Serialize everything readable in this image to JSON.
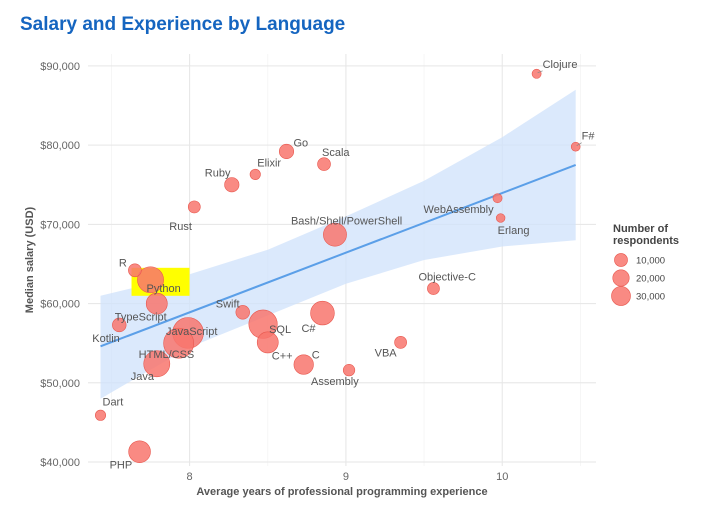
{
  "chart_data": {
    "type": "scatter",
    "title": "Salary and Experience by Language",
    "xlabel": "Average years of professional programming experience",
    "ylabel": "Median salary (USD)",
    "xlim": [
      7.35,
      10.6
    ],
    "ylim": [
      39500,
      91500
    ],
    "x_ticks": [
      8,
      9,
      10
    ],
    "y_ticks": [
      {
        "value": 40000,
        "label": "$40,000"
      },
      {
        "value": 50000,
        "label": "$50,000"
      },
      {
        "value": 60000,
        "label": "$60,000"
      },
      {
        "value": 70000,
        "label": "$70,000"
      },
      {
        "value": 80000,
        "label": "$80,000"
      },
      {
        "value": 90000,
        "label": "$90,000"
      }
    ],
    "grid": true,
    "point_color": "#f8766d",
    "fit_line_color": "#5b9fe8",
    "confidence_band_color": "#cfe2fb",
    "highlight_color": "#ffff00",
    "points": [
      {
        "name": "Clojure",
        "x": 10.22,
        "y": 89000,
        "size": 700
      },
      {
        "name": "F#",
        "x": 10.47,
        "y": 79800,
        "size": 600
      },
      {
        "name": "Go",
        "x": 8.62,
        "y": 79200,
        "size": 6000
      },
      {
        "name": "Scala",
        "x": 8.86,
        "y": 77600,
        "size": 4000
      },
      {
        "name": "Elixir",
        "x": 8.42,
        "y": 76300,
        "size": 1500
      },
      {
        "name": "Ruby",
        "x": 8.27,
        "y": 75000,
        "size": 6000
      },
      {
        "name": "Rust",
        "x": 8.03,
        "y": 72200,
        "size": 3000
      },
      {
        "name": "WebAssembly",
        "x": 9.97,
        "y": 73300,
        "size": 700
      },
      {
        "name": "Erlang",
        "x": 9.99,
        "y": 70800,
        "size": 500
      },
      {
        "name": "Bash/Shell/PowerShell",
        "x": 8.93,
        "y": 68700,
        "size": 26000
      },
      {
        "name": "R",
        "x": 7.65,
        "y": 64200,
        "size": 4000
      },
      {
        "name": "Python",
        "x": 7.75,
        "y": 63000,
        "size": 36000
      },
      {
        "name": "Objective-C",
        "x": 9.56,
        "y": 61900,
        "size": 3000
      },
      {
        "name": "Swift",
        "x": 8.34,
        "y": 58900,
        "size": 5000
      },
      {
        "name": "TypeScript",
        "x": 7.79,
        "y": 60000,
        "size": 20000
      },
      {
        "name": "C#",
        "x": 8.85,
        "y": 58800,
        "size": 28000
      },
      {
        "name": "Kotlin",
        "x": 7.55,
        "y": 57300,
        "size": 5000
      },
      {
        "name": "JavaScript",
        "x": 7.99,
        "y": 56300,
        "size": 55000
      },
      {
        "name": "SQL",
        "x": 8.47,
        "y": 57400,
        "size": 45000
      },
      {
        "name": "HTML/CSS",
        "x": 7.93,
        "y": 55000,
        "size": 52000
      },
      {
        "name": "C++",
        "x": 8.5,
        "y": 55100,
        "size": 20000
      },
      {
        "name": "VBA",
        "x": 9.35,
        "y": 55100,
        "size": 3000
      },
      {
        "name": "C",
        "x": 8.73,
        "y": 52300,
        "size": 16000
      },
      {
        "name": "Java",
        "x": 7.79,
        "y": 52400,
        "size": 36000
      },
      {
        "name": "Assembly",
        "x": 9.02,
        "y": 51600,
        "size": 2500
      },
      {
        "name": "Dart",
        "x": 7.43,
        "y": 45900,
        "size": 1500
      },
      {
        "name": "PHP",
        "x": 7.68,
        "y": 41300,
        "size": 22000
      }
    ],
    "fit": {
      "x": [
        7.43,
        10.47
      ],
      "y": [
        54600,
        77500
      ]
    },
    "confidence_band": {
      "x": [
        7.43,
        8.0,
        8.5,
        9.0,
        9.5,
        10.0,
        10.47
      ],
      "upper": [
        61000,
        63700,
        66800,
        71000,
        75500,
        81000,
        87000
      ],
      "lower": [
        48000,
        54500,
        58500,
        62500,
        65500,
        67200,
        68000
      ]
    },
    "legend": {
      "title_lines": [
        "Number of",
        "respondents"
      ],
      "placement": "right",
      "entries": [
        {
          "label": "10,000",
          "size": 10000
        },
        {
          "label": "20,000",
          "size": 20000
        },
        {
          "label": "30,000",
          "size": 30000
        }
      ]
    }
  }
}
